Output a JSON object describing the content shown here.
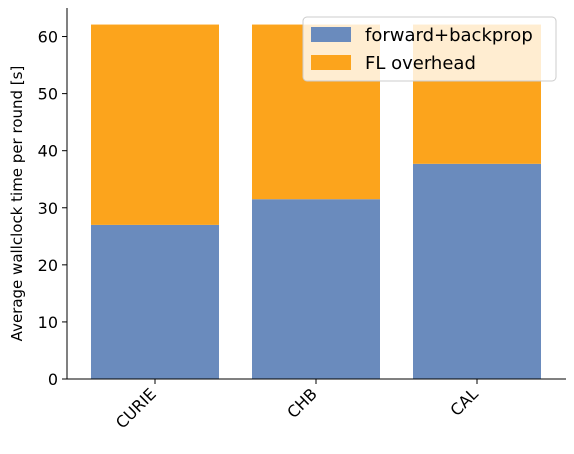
{
  "chart_data": {
    "type": "bar",
    "stacked": true,
    "categories": [
      "CURIE",
      "CHB",
      "CAL"
    ],
    "series": [
      {
        "name": "forward+backprop",
        "values": [
          27.0,
          31.5,
          37.7
        ],
        "color": "#6a8bbd"
      },
      {
        "name": "FL overhead",
        "values": [
          35.1,
          30.6,
          24.4
        ],
        "color": "#fca41c"
      }
    ],
    "ylabel": "Average wallclock time per round [s]",
    "xlabel": "",
    "ylim": [
      0,
      65
    ],
    "yticks": [
      0,
      10,
      20,
      30,
      40,
      50,
      60
    ],
    "legend_position": "top-right",
    "grid": false
  }
}
